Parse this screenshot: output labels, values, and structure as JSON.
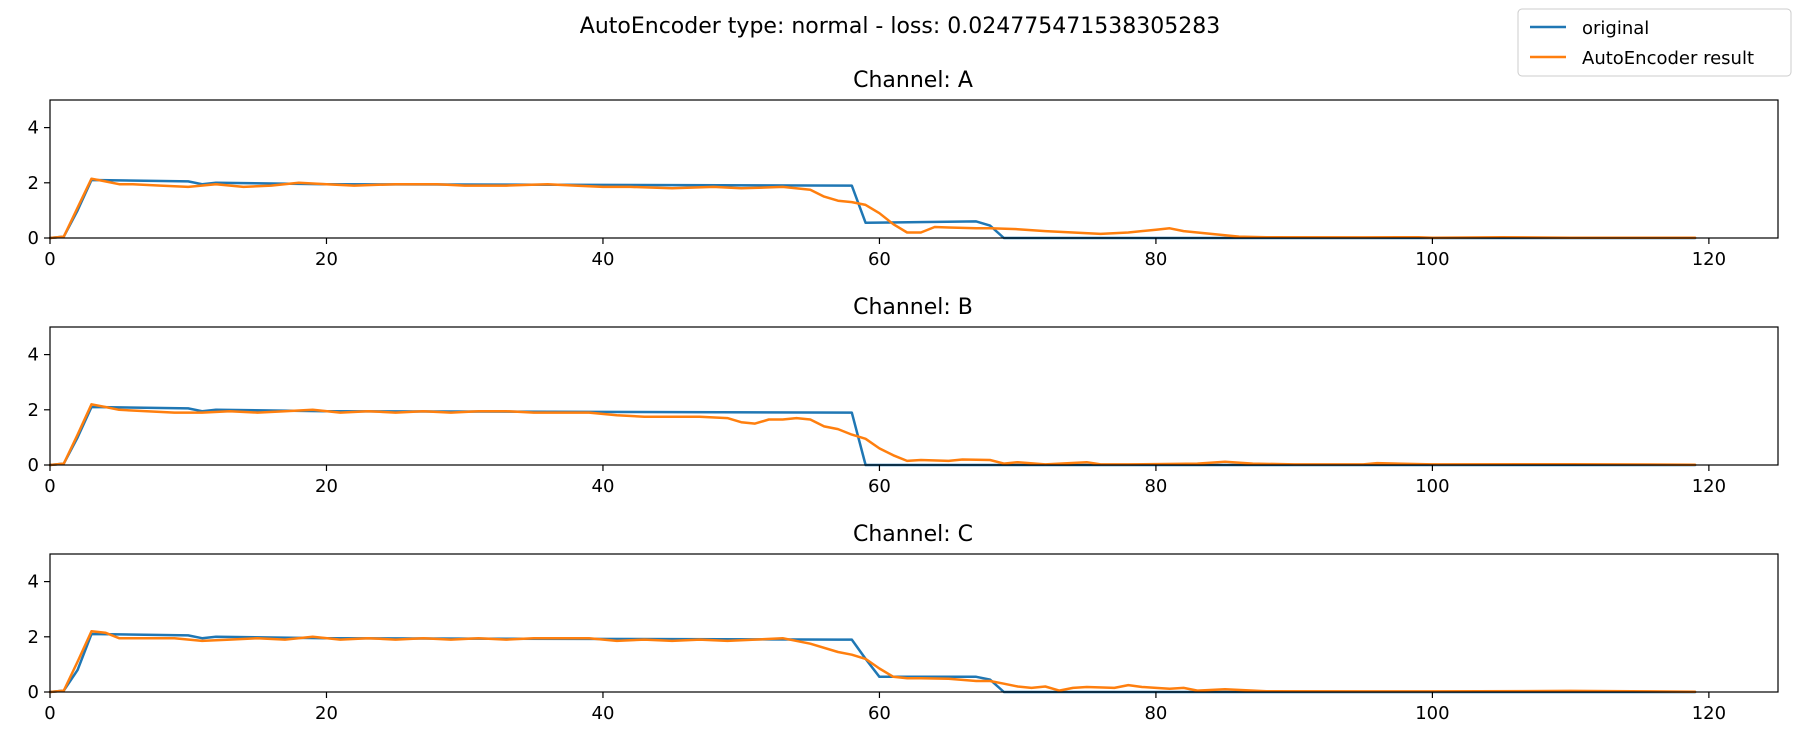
{
  "chart_data": {
    "type": "line",
    "title": "AutoEncoder type: normal - loss: 0.024775471538305283",
    "legend": {
      "placement": "top-right",
      "entries": [
        {
          "label": "original",
          "color": "#1f77b4"
        },
        {
          "label": "AutoEncoder result",
          "color": "#ff7f0e"
        }
      ]
    },
    "xlim": [
      0,
      125
    ],
    "ylim": [
      0,
      5
    ],
    "xticks": [
      0,
      20,
      40,
      60,
      80,
      100,
      120
    ],
    "yticks": [
      0,
      2,
      4
    ],
    "grid": false,
    "subplots": [
      {
        "title": "Channel: A",
        "series": [
          {
            "name": "original",
            "color": "#1f77b4",
            "x": [
              0,
              1,
              2,
              3,
              10,
              11,
              12,
              20,
              58,
              59,
              67,
              68,
              69,
              119
            ],
            "y": [
              0,
              0.05,
              1.0,
              2.1,
              2.05,
              1.95,
              2.0,
              1.95,
              1.9,
              0.55,
              0.6,
              0.45,
              0,
              0
            ]
          },
          {
            "name": "AutoEncoder result",
            "color": "#ff7f0e",
            "x": [
              0,
              1,
              2,
              3,
              4,
              5,
              6,
              8,
              10,
              12,
              14,
              16,
              18,
              20,
              22,
              25,
              28,
              30,
              33,
              36,
              38,
              40,
              42,
              45,
              48,
              50,
              53,
              55,
              56,
              57,
              58,
              59,
              60,
              61,
              62,
              63,
              64,
              65,
              67,
              68,
              70,
              72,
              74,
              76,
              78,
              80,
              81,
              82,
              84,
              85,
              86,
              88,
              95,
              99,
              100,
              105,
              110,
              119
            ],
            "y": [
              0,
              0.05,
              1.1,
              2.15,
              2.05,
              1.95,
              1.95,
              1.9,
              1.85,
              1.95,
              1.85,
              1.9,
              2.0,
              1.95,
              1.9,
              1.95,
              1.95,
              1.9,
              1.9,
              1.95,
              1.9,
              1.85,
              1.85,
              1.8,
              1.85,
              1.8,
              1.85,
              1.75,
              1.5,
              1.35,
              1.3,
              1.2,
              0.9,
              0.5,
              0.2,
              0.2,
              0.4,
              0.38,
              0.35,
              0.35,
              0.32,
              0.25,
              0.2,
              0.15,
              0.2,
              0.3,
              0.35,
              0.25,
              0.15,
              0.1,
              0.05,
              0.03,
              0.02,
              0.03,
              0.01,
              0.03,
              0.01,
              0.01
            ]
          }
        ]
      },
      {
        "title": "Channel: B",
        "series": [
          {
            "name": "original",
            "color": "#1f77b4",
            "x": [
              0,
              1,
              2,
              3,
              10,
              11,
              12,
              20,
              58,
              59,
              119
            ],
            "y": [
              0,
              0.05,
              1.0,
              2.1,
              2.05,
              1.95,
              2.0,
              1.95,
              1.9,
              0,
              0
            ]
          },
          {
            "name": "AutoEncoder result",
            "color": "#ff7f0e",
            "x": [
              0,
              1,
              2,
              3,
              4,
              5,
              7,
              9,
              11,
              13,
              15,
              17,
              19,
              21,
              23,
              25,
              27,
              29,
              31,
              33,
              35,
              37,
              39,
              41,
              43,
              45,
              47,
              49,
              50,
              51,
              52,
              53,
              54,
              55,
              56,
              57,
              58,
              59,
              60,
              61,
              62,
              63,
              65,
              66,
              68,
              69,
              70,
              72,
              75,
              76,
              78,
              83,
              85,
              87,
              90,
              95,
              96,
              100,
              110,
              119
            ],
            "y": [
              0,
              0.05,
              1.1,
              2.2,
              2.1,
              2.0,
              1.95,
              1.9,
              1.9,
              1.95,
              1.9,
              1.95,
              2.0,
              1.9,
              1.95,
              1.9,
              1.95,
              1.9,
              1.95,
              1.95,
              1.9,
              1.9,
              1.9,
              1.8,
              1.75,
              1.75,
              1.75,
              1.7,
              1.55,
              1.5,
              1.65,
              1.65,
              1.7,
              1.65,
              1.4,
              1.3,
              1.1,
              0.95,
              0.6,
              0.35,
              0.15,
              0.18,
              0.15,
              0.2,
              0.18,
              0.05,
              0.1,
              0.02,
              0.1,
              0.02,
              0.02,
              0.05,
              0.12,
              0.05,
              0.02,
              0.02,
              0.07,
              0.02,
              0.03,
              0.01
            ]
          }
        ]
      },
      {
        "title": "Channel: C",
        "series": [
          {
            "name": "original",
            "color": "#1f77b4",
            "x": [
              0,
              1,
              2,
              3,
              10,
              11,
              12,
              20,
              57,
              58,
              59,
              60,
              67,
              68,
              69,
              119
            ],
            "y": [
              0,
              0.05,
              0.8,
              2.1,
              2.05,
              1.95,
              2.0,
              1.95,
              1.9,
              1.9,
              1.2,
              0.55,
              0.55,
              0.45,
              0,
              0
            ]
          },
          {
            "name": "AutoEncoder result",
            "color": "#ff7f0e",
            "x": [
              0,
              1,
              2,
              3,
              4,
              5,
              7,
              9,
              11,
              13,
              15,
              17,
              19,
              21,
              23,
              25,
              27,
              29,
              31,
              33,
              35,
              37,
              39,
              41,
              43,
              45,
              47,
              49,
              51,
              53,
              55,
              57,
              58,
              59,
              60,
              61,
              62,
              63,
              65,
              67,
              68,
              69,
              70,
              71,
              72,
              73,
              74,
              75,
              77,
              78,
              79,
              80,
              81,
              82,
              83,
              85,
              88,
              95,
              100,
              110,
              119
            ],
            "y": [
              0,
              0.05,
              1.1,
              2.2,
              2.15,
              1.95,
              1.95,
              1.95,
              1.85,
              1.9,
              1.95,
              1.9,
              2.0,
              1.9,
              1.95,
              1.9,
              1.95,
              1.9,
              1.95,
              1.9,
              1.95,
              1.95,
              1.95,
              1.85,
              1.9,
              1.85,
              1.9,
              1.85,
              1.9,
              1.95,
              1.75,
              1.45,
              1.35,
              1.2,
              0.85,
              0.55,
              0.5,
              0.5,
              0.48,
              0.4,
              0.4,
              0.3,
              0.2,
              0.15,
              0.2,
              0.05,
              0.15,
              0.18,
              0.15,
              0.25,
              0.18,
              0.15,
              0.12,
              0.15,
              0.05,
              0.1,
              0.03,
              0.02,
              0.02,
              0.04,
              0.01
            ]
          }
        ]
      }
    ]
  }
}
